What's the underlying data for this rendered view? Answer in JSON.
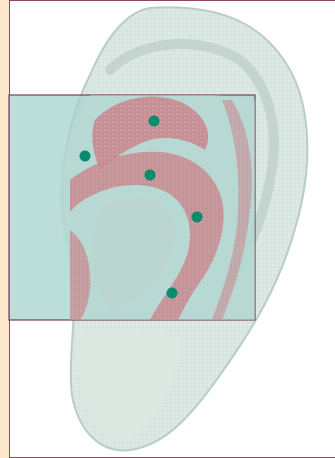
{
  "colors": {
    "page_background": "#fde8cc",
    "canvas_background": "#ffffff",
    "ear_fill": "#d6e4de",
    "ear_inner_fill": "#c2d8d1",
    "ear_stroke": "#b9ccc5",
    "highlight_fill": "#a6d3cf",
    "highlight_stroke": "#7b3f52",
    "ridge_fill": "#c7828a",
    "point_fill": "#0b8a6c"
  },
  "icons": {
    "ear": "ear-illustration",
    "point": "acupoint-dot-icon"
  },
  "points_count_visible": 5
}
